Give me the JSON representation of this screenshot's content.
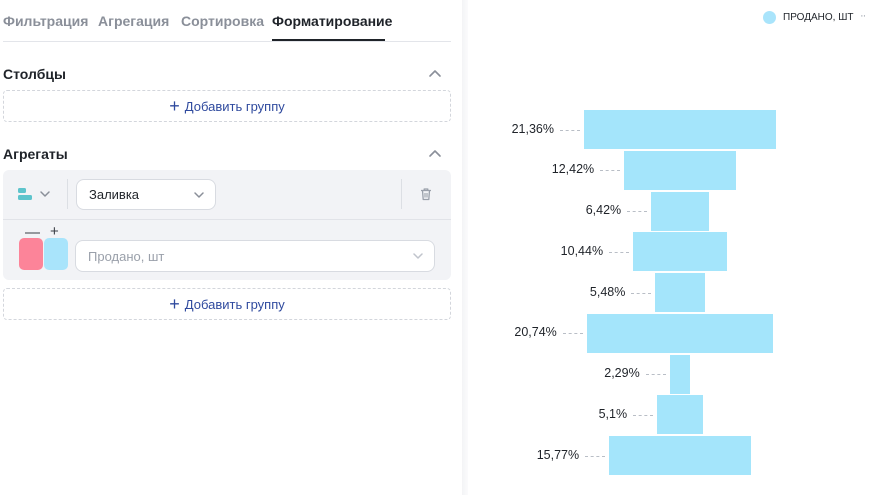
{
  "tabs": [
    {
      "label": "Фильтрация",
      "active": false
    },
    {
      "label": "Агрегация",
      "active": false
    },
    {
      "label": "Сортировка",
      "active": false
    },
    {
      "label": "Форматирование",
      "active": true
    }
  ],
  "columns": {
    "title": "Столбцы",
    "add_group_label": "Добавить группу"
  },
  "aggregates": {
    "title": "Агрегаты",
    "format_select_value": "Заливка",
    "minus_label": "—",
    "plus_label": "+",
    "measure_placeholder": "Продано, шт",
    "add_group_label": "Добавить группу",
    "swatch_colors": [
      "#fc8499",
      "#a9e4fb"
    ]
  },
  "colors": {
    "accent": "#2f4a9e",
    "bar": "#a4e5fb",
    "type_icon": "#5ec4cc"
  },
  "icons": {
    "collapse": "chevron-up-icon",
    "type": "bar-type-icon",
    "delete": "trash-icon",
    "add": "plus-icon",
    "more": "more-icon"
  },
  "chart_data": {
    "type": "bar",
    "subtype": "funnel",
    "legend": {
      "label": "ПРОДАНО, ШТ",
      "position": "top-right",
      "color": "#a9e4fb"
    },
    "series": [
      {
        "name": "ПРОДАНО, ШТ",
        "values": [
          21.36,
          12.42,
          6.42,
          10.44,
          5.48,
          20.74,
          2.29,
          5.1,
          15.77
        ]
      }
    ],
    "labels": [
      "21,36%",
      "12,42%",
      "6,42%",
      "10,44%",
      "5,48%",
      "20,74%",
      "2,29%",
      "5,1%",
      "15,77%"
    ],
    "grid": false
  }
}
